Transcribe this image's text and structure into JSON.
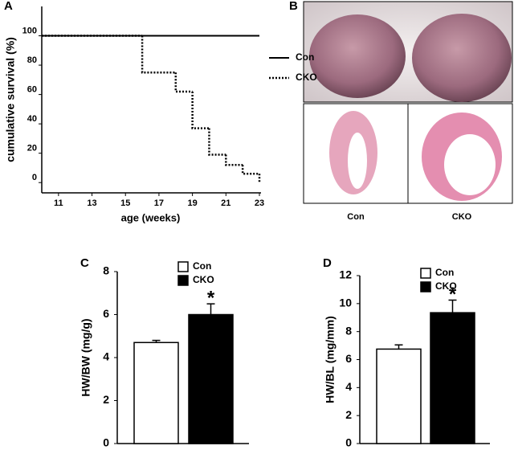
{
  "chart_data": [
    {
      "type": "step",
      "panel_label": "A",
      "ylabel": "cumulative survival (%)",
      "xlabel": "age (weeks)",
      "xlim": [
        10,
        23
      ],
      "xticks": [
        11,
        13,
        15,
        17,
        19,
        21,
        23
      ],
      "ylim": [
        -7,
        120
      ],
      "yticks": [
        0,
        20,
        40,
        60,
        80,
        100
      ],
      "series": [
        {
          "name": "Con",
          "color": "#000000",
          "line_style": "solid",
          "x": [
            10,
            23
          ],
          "values": [
            100,
            100
          ]
        },
        {
          "name": "CKO",
          "color": "#000000",
          "line_style": "dotted",
          "x": [
            10,
            16,
            18,
            19,
            20,
            21,
            22,
            23
          ],
          "values": [
            100,
            75,
            62,
            37,
            19,
            12,
            6,
            0
          ]
        }
      ]
    },
    {
      "type": "bar",
      "panel_label": "C",
      "ylabel": "HW/BW (mg/g)",
      "ylim": [
        0,
        8
      ],
      "yticks": [
        0,
        2,
        4,
        6,
        8
      ],
      "categories": [
        "Con",
        "CKO"
      ],
      "colors": [
        "#ffffff",
        "#000000"
      ],
      "values": [
        4.7,
        6.0
      ],
      "errors": [
        0.1,
        0.5
      ],
      "significance_label": "*"
    },
    {
      "type": "bar",
      "panel_label": "D",
      "ylabel": "HW/BL (mg/mm)",
      "ylim": [
        0,
        12
      ],
      "yticks": [
        0,
        2,
        4,
        6,
        8,
        10,
        12
      ],
      "categories": [
        "Con",
        "CKO"
      ],
      "colors": [
        "#ffffff",
        "#000000"
      ],
      "values": [
        6.75,
        9.35
      ],
      "errors": [
        0.3,
        0.9
      ],
      "significance_label": "*"
    }
  ],
  "image_panel": {
    "panel_label": "B",
    "captions": [
      "Con",
      "CKO"
    ]
  }
}
